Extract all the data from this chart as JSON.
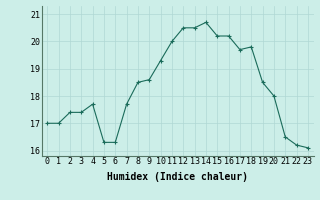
{
  "x": [
    0,
    1,
    2,
    3,
    4,
    5,
    6,
    7,
    8,
    9,
    10,
    11,
    12,
    13,
    14,
    15,
    16,
    17,
    18,
    19,
    20,
    21,
    22,
    23
  ],
  "y": [
    17.0,
    17.0,
    17.4,
    17.4,
    17.7,
    16.3,
    16.3,
    17.7,
    18.5,
    18.6,
    19.3,
    20.0,
    20.5,
    20.5,
    20.7,
    20.2,
    20.2,
    19.7,
    19.8,
    18.5,
    18.0,
    16.5,
    16.2,
    16.1
  ],
  "xlabel": "Humidex (Indice chaleur)",
  "ylim": [
    15.8,
    21.3
  ],
  "xlim": [
    -0.5,
    23.5
  ],
  "yticks": [
    16,
    17,
    18,
    19,
    20,
    21
  ],
  "xticks": [
    0,
    1,
    2,
    3,
    4,
    5,
    6,
    7,
    8,
    9,
    10,
    11,
    12,
    13,
    14,
    15,
    16,
    17,
    18,
    19,
    20,
    21,
    22,
    23
  ],
  "line_color": "#1a6b5a",
  "marker": "+",
  "marker_size": 3,
  "marker_linewidth": 0.8,
  "line_width": 0.8,
  "bg_color": "#cceee8",
  "grid_color": "#b0d8d4",
  "tick_fontsize": 6,
  "xlabel_fontsize": 7
}
